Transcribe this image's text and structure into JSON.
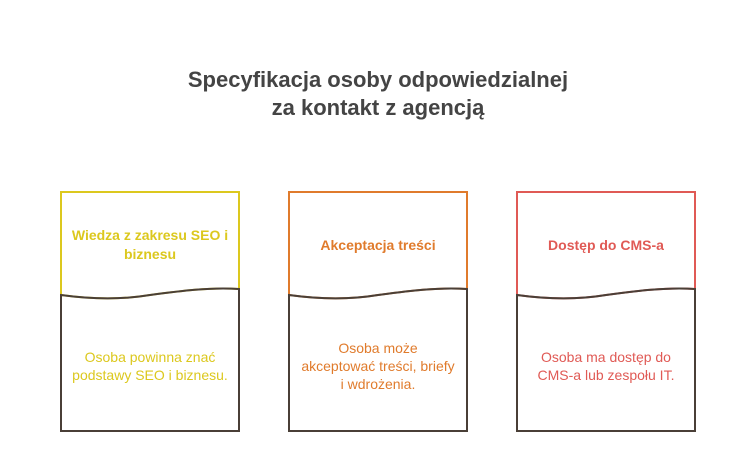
{
  "title": {
    "line1": "Specyfikacja osoby odpowiedzialnej",
    "line2": "za kontakt z agencją"
  },
  "cards": [
    {
      "heading": "Wiedza z zakresu SEO i biznesu",
      "description": "Osoba powinna znać podstawy SEO i biznesu.",
      "color": "#dcc81e"
    },
    {
      "heading": "Akceptacja treści",
      "description": "Osoba może akceptować treści, briefy i wdrożenia.",
      "color": "#e07b2c"
    },
    {
      "heading": "Dostęp do CMS-a",
      "description": "Osoba ma dostęp do CMS-a lub zespołu IT.",
      "color": "#e05a55"
    }
  ],
  "colors": {
    "title": "#444444",
    "outline": "#4a3f37"
  }
}
